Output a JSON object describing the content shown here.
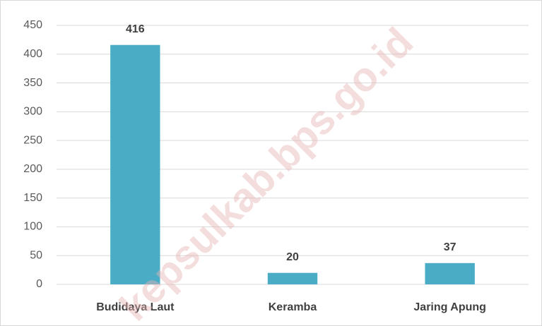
{
  "chart_data": {
    "type": "bar",
    "categories": [
      "Budidaya Laut",
      "Keramba",
      "Jaring Apung"
    ],
    "values": [
      416,
      20,
      37
    ],
    "color": "#4bacc6",
    "ylim": [
      0,
      450
    ],
    "yticks": [
      0,
      50,
      100,
      150,
      200,
      250,
      300,
      350,
      400,
      450
    ],
    "grid": true,
    "watermark": "kepsulkab.bps.go.id"
  }
}
